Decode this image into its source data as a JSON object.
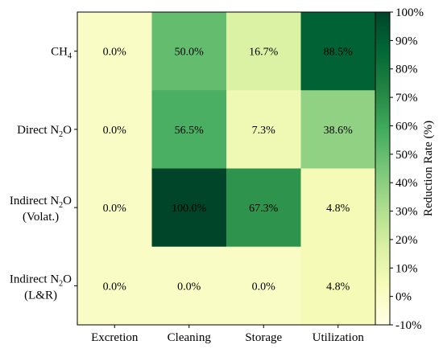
{
  "chart_data": {
    "type": "heatmap",
    "title": "",
    "xlabel": "",
    "ylabel": "",
    "columns": [
      "Excretion",
      "Cleaning",
      "Storage",
      "Utilization"
    ],
    "rows": [
      {
        "main": "CH",
        "sub": "4",
        "after": "",
        "line2": ""
      },
      {
        "main": "Direct N",
        "sub": "2",
        "after": "O",
        "line2": ""
      },
      {
        "main": "Indirect N",
        "sub": "2",
        "after": "O",
        "line2": "(Volat.)"
      },
      {
        "main": "Indirect N",
        "sub": "2",
        "after": "O",
        "line2": "(L&R)"
      }
    ],
    "values": [
      [
        0.0,
        50.0,
        16.7,
        88.5
      ],
      [
        0.0,
        56.5,
        7.3,
        38.6
      ],
      [
        0.0,
        100.0,
        67.3,
        4.8
      ],
      [
        0.0,
        0.0,
        0.0,
        4.8
      ]
    ],
    "cell_labels": [
      [
        "0.0%",
        "50.0%",
        "16.7%",
        "88.5%"
      ],
      [
        "0.0%",
        "56.5%",
        "7.3%",
        "38.6%"
      ],
      [
        "0.0%",
        "100.0%",
        "67.3%",
        "4.8%"
      ],
      [
        "0.0%",
        "0.0%",
        "0.0%",
        "4.8%"
      ]
    ],
    "colorbar": {
      "label": "Reduction Rate (%)",
      "range": [
        -10,
        100
      ],
      "ticks": [
        -10,
        0,
        10,
        20,
        30,
        40,
        50,
        60,
        70,
        80,
        90,
        100
      ],
      "tick_labels": [
        "-10%",
        "0%",
        "10%",
        "20%",
        "30%",
        "40%",
        "50%",
        "60%",
        "70%",
        "80%",
        "90%",
        "100%"
      ],
      "colormap": "YlGn",
      "stops": [
        "#ffffe5",
        "#f7fcb9",
        "#d9f0a3",
        "#addd8e",
        "#78c679",
        "#41ab5d",
        "#238443",
        "#006837",
        "#004529"
      ]
    }
  }
}
